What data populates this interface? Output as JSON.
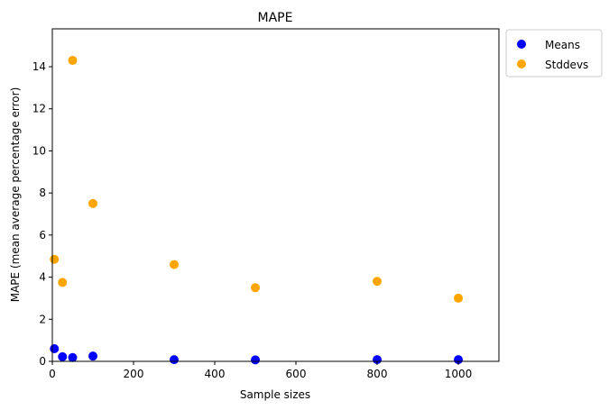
{
  "chart_data": {
    "type": "scatter",
    "title": "MAPE",
    "xlabel": "Sample sizes",
    "ylabel": "MAPE (mean average percentage error)",
    "xlim": [
      0,
      1100
    ],
    "ylim": [
      0,
      15.8
    ],
    "xticks": [
      0,
      200,
      400,
      600,
      800,
      1000
    ],
    "yticks": [
      0,
      2,
      4,
      6,
      8,
      10,
      12,
      14
    ],
    "legend_position": "outside-top-right",
    "grid": false,
    "series": [
      {
        "name": "Means",
        "color": "#0000ff",
        "points": [
          {
            "x": 5,
            "y": 0.6
          },
          {
            "x": 25,
            "y": 0.22
          },
          {
            "x": 50,
            "y": 0.18
          },
          {
            "x": 100,
            "y": 0.25
          },
          {
            "x": 300,
            "y": 0.08
          },
          {
            "x": 500,
            "y": 0.07
          },
          {
            "x": 800,
            "y": 0.08
          },
          {
            "x": 1000,
            "y": 0.08
          }
        ]
      },
      {
        "name": "Stddevs",
        "color": "#ffa500",
        "points": [
          {
            "x": 5,
            "y": 4.85
          },
          {
            "x": 25,
            "y": 3.75
          },
          {
            "x": 50,
            "y": 14.3
          },
          {
            "x": 100,
            "y": 7.5
          },
          {
            "x": 300,
            "y": 4.6
          },
          {
            "x": 500,
            "y": 3.5
          },
          {
            "x": 800,
            "y": 3.8
          },
          {
            "x": 1000,
            "y": 3.0
          }
        ]
      }
    ]
  }
}
